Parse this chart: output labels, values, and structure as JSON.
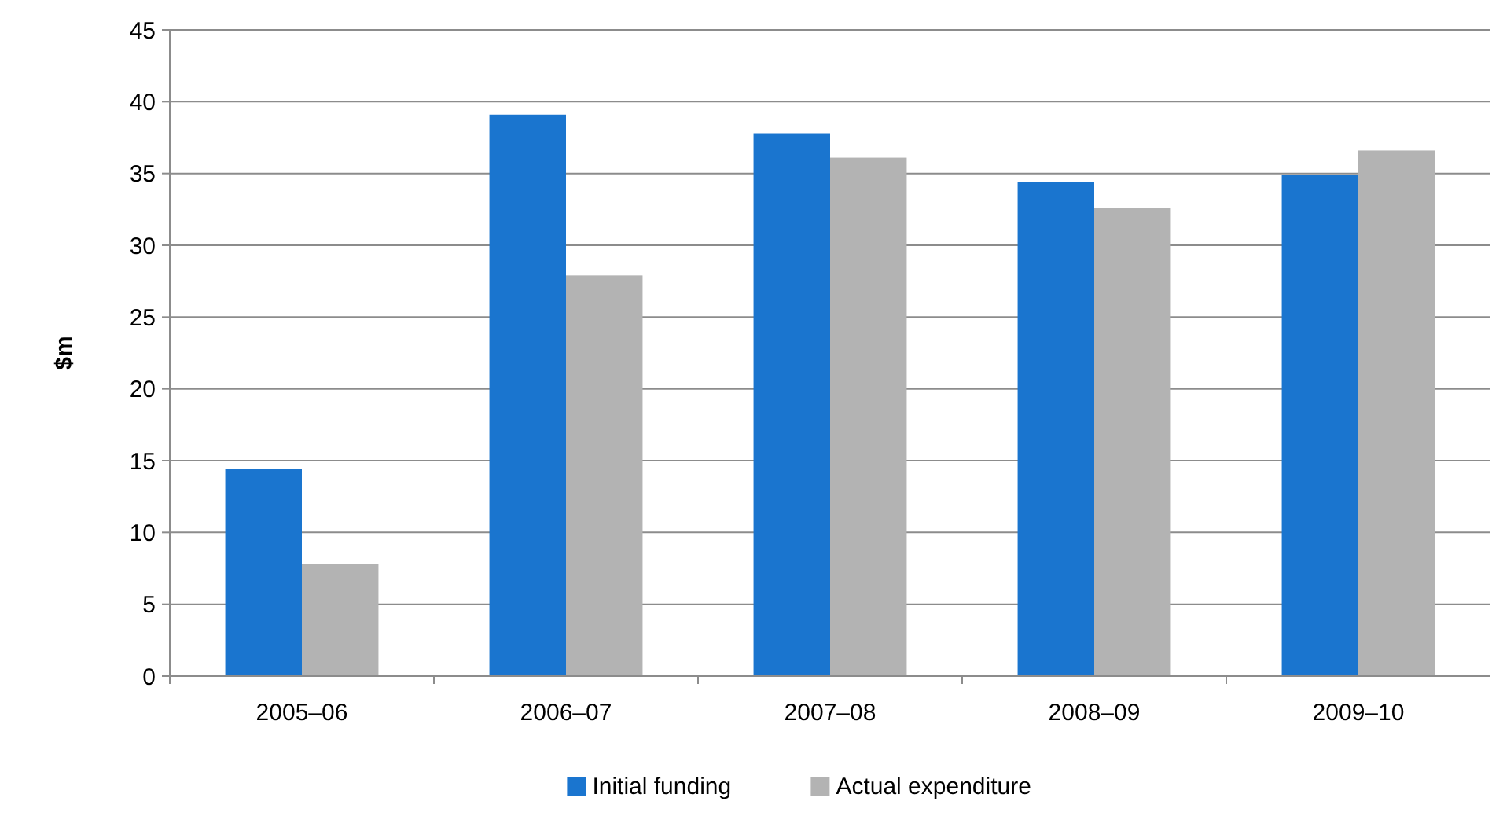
{
  "chart_data": {
    "type": "bar",
    "ylabel": "$m",
    "categories": [
      "2005–06",
      "2006–07",
      "2007–08",
      "2008–09",
      "2009–10"
    ],
    "series": [
      {
        "name": "Initial funding",
        "color": "#1a75cf",
        "values": [
          14.4,
          39.1,
          37.8,
          34.4,
          34.9
        ]
      },
      {
        "name": "Actual expenditure",
        "color": "#b3b3b3",
        "values": [
          7.8,
          27.9,
          36.1,
          32.6,
          36.6
        ]
      }
    ],
    "ylim": [
      0,
      45
    ],
    "yticks": [
      0,
      5,
      10,
      15,
      20,
      25,
      30,
      35,
      40,
      45
    ],
    "grid": "y",
    "legend": "bottom"
  }
}
